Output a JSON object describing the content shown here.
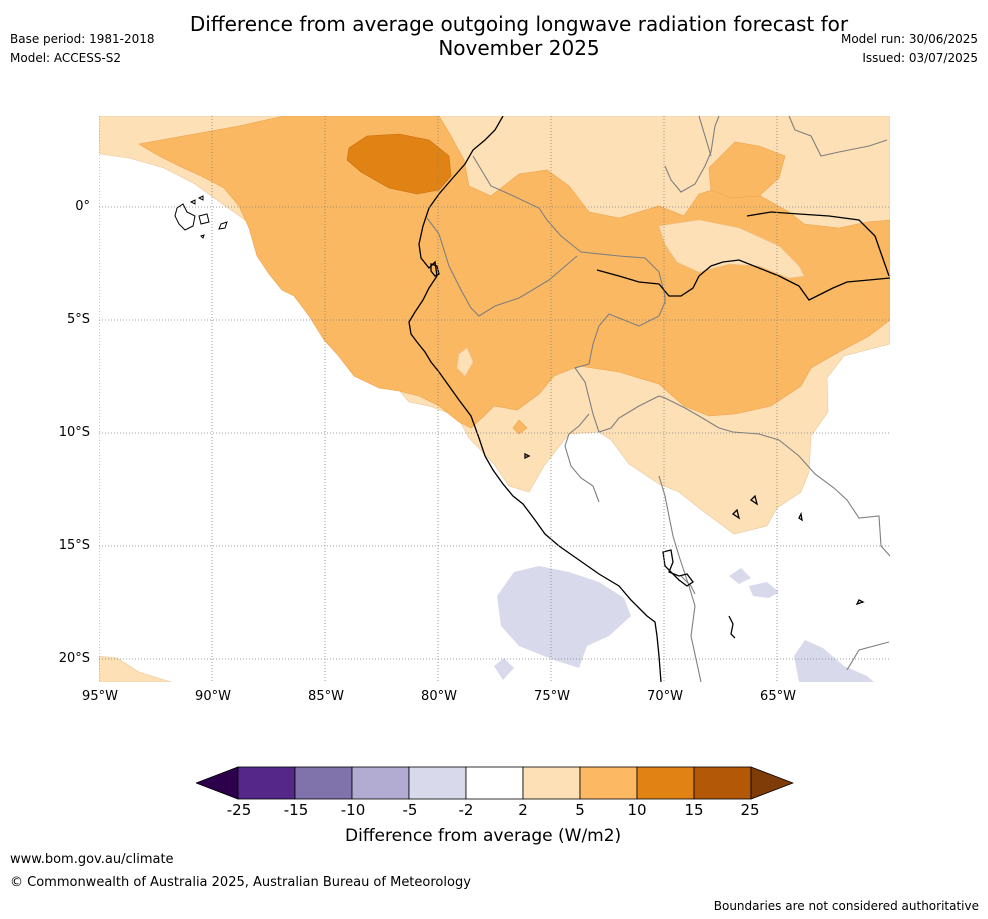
{
  "header": {
    "title": "Difference from average outgoing longwave radiation forecast for November 2025",
    "base_period": "Base period: 1981-2018",
    "model": "Model: ACCESS-S2",
    "model_run": "Model run: 30/06/2025",
    "issued": "Issued: 03/07/2025"
  },
  "map": {
    "region": "Western South America and eastern tropical Pacific",
    "lat_labels": [
      "0°",
      "5°S",
      "10°S",
      "15°S",
      "20°S"
    ],
    "lon_labels": [
      "95°W",
      "90°W",
      "85°W",
      "80°W",
      "75°W",
      "70°W",
      "65°W"
    ],
    "colors": {
      "c_2_5": "#fde0b6",
      "c_5_10": "#fbb862",
      "c_10_15": "#e08214",
      "c_neg5_neg2": "#d8daeb",
      "coastline": "#000000",
      "border": "#7f7f7f",
      "gridline": "#808080"
    }
  },
  "colorbar": {
    "title": "Difference from average (W/m2)",
    "ticks": [
      "-25",
      "-15",
      "-10",
      "-5",
      "-2",
      "2",
      "5",
      "10",
      "15",
      "25"
    ],
    "colors": [
      "#2d004b",
      "#542788",
      "#8073ac",
      "#b2abd2",
      "#d8daeb",
      "#ffffff",
      "#fee0b6",
      "#fdb863",
      "#e08214",
      "#b35806",
      "#7f3b08"
    ]
  },
  "footer": {
    "url": "www.bom.gov.au/climate",
    "copyright": "© Commonwealth of Australia 2025, Australian Bureau of Meteorology",
    "disclaimer": "Boundaries are not considered authoritative"
  }
}
